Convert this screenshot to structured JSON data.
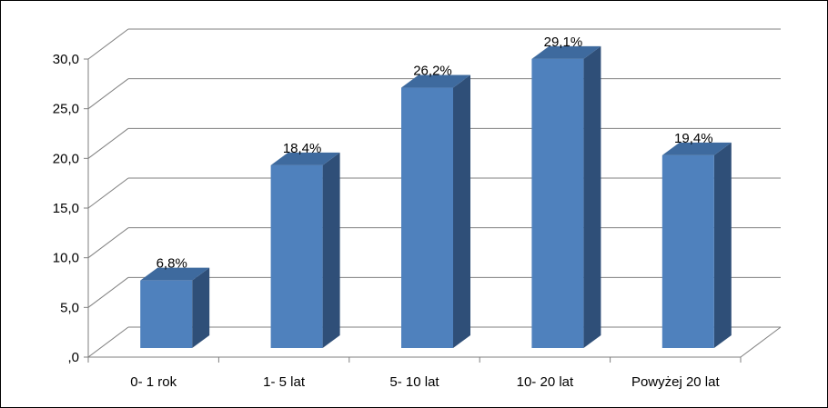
{
  "chart_data": {
    "type": "bar",
    "style": "3d-column",
    "categories": [
      "0- 1 rok",
      "1- 5 lat",
      "5- 10 lat",
      "10- 20 lat",
      "Powyżej 20 lat"
    ],
    "values": [
      6.8,
      18.4,
      26.2,
      29.1,
      19.4
    ],
    "data_labels": [
      "6,8%",
      "18,4%",
      "26,2%",
      "29,1%",
      "19,4%"
    ],
    "y_ticks": [
      ",0",
      "5,0",
      "10,0",
      "15,0",
      "20,0",
      "25,0",
      "30,0"
    ],
    "ylim": [
      0,
      30
    ],
    "grid": true,
    "legend": "none",
    "title": "",
    "xlabel": "",
    "ylabel": "",
    "colors": {
      "bar_front": "#4F81BD",
      "bar_side": "#2F4F78",
      "bar_top": "#3E6A9E",
      "grid": "#7F7F7F",
      "axis": "#7F7F7F"
    }
  }
}
